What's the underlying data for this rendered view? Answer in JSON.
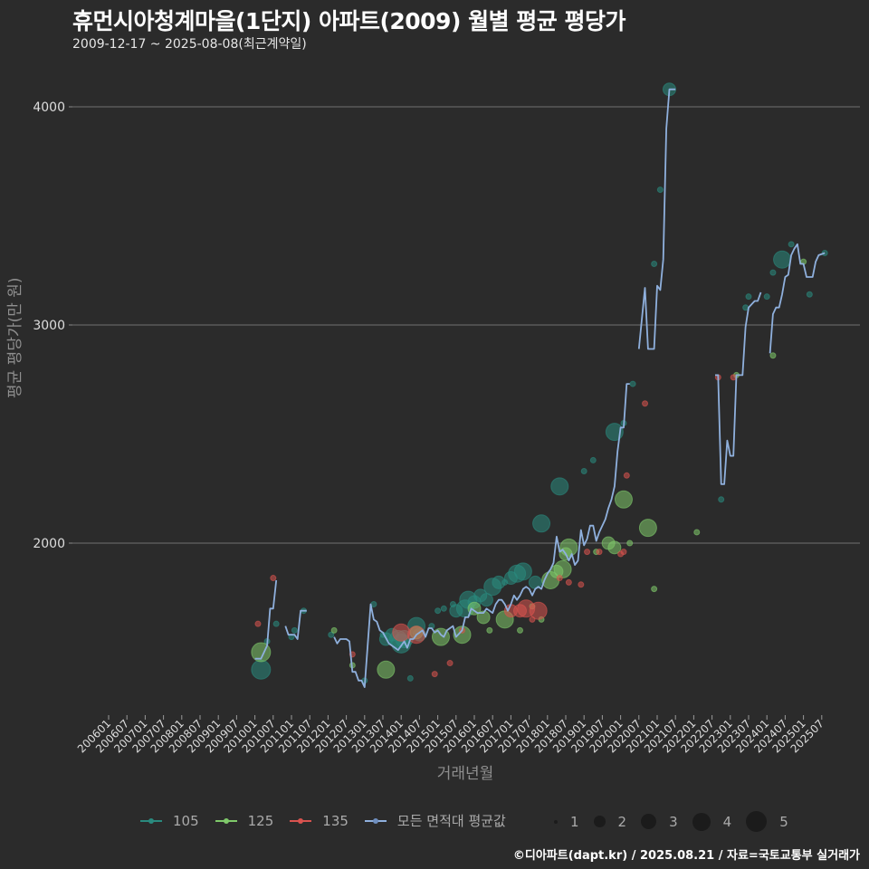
{
  "header": {
    "title": "휴먼시아청계마을(1단지) 아파트(2009) 월별 평균 평당가",
    "subtitle": "2009-12-17 ~ 2025-08-08(최근계약일)"
  },
  "axes": {
    "y_label": "평균 평당가(만 원)",
    "x_label": "거래년월",
    "y_ticks": [
      "2000",
      "3000",
      "4000"
    ],
    "x_ticks": [
      "200601",
      "200607",
      "200701",
      "200707",
      "200801",
      "200807",
      "200901",
      "200907",
      "201001",
      "201007",
      "201101",
      "201107",
      "201201",
      "201207",
      "201301",
      "201307",
      "201401",
      "201407",
      "201501",
      "201507",
      "201601",
      "201607",
      "201701",
      "201707",
      "201801",
      "201807",
      "201901",
      "201907",
      "202001",
      "202007",
      "202101",
      "202107",
      "202201",
      "202207",
      "202301",
      "202307",
      "202401",
      "202407",
      "202501",
      "202507"
    ]
  },
  "legend": {
    "series": [
      {
        "label": "105",
        "color": "#2a8a7e"
      },
      {
        "label": "125",
        "color": "#7fc96a"
      },
      {
        "label": "135",
        "color": "#d9534f"
      },
      {
        "label": "모든 면적대 평균값",
        "color": "#8fb0dd"
      }
    ],
    "sizes": [
      "1",
      "2",
      "3",
      "4",
      "5"
    ]
  },
  "footer": {
    "credit": "©디아파트(dapt.kr) / 2025.08.21 / 자료=국토교통부 실거래가"
  },
  "chart_data": {
    "type": "line",
    "title": "휴먼시아청계마을(1단지) 아파트(2009) 월별 평균 평당가",
    "subtitle": "2009-12-17 ~ 2025-08-08(최근계약일)",
    "xlabel": "거래년월",
    "ylabel": "평균 평당가(만 원)",
    "ylim": [
      1100,
      4150
    ],
    "grid": true,
    "legend_position": "bottom",
    "average_line": {
      "name": "모든 면적대 평균값",
      "segments": [
        [
          [
            "201001",
            1470
          ],
          [
            "201003",
            1470
          ],
          [
            "201005",
            1530
          ],
          [
            "201006",
            1700
          ],
          [
            "201007",
            1700
          ],
          [
            "201008",
            1830
          ]
        ],
        [
          [
            "201011",
            1620
          ],
          [
            "201012",
            1580
          ],
          [
            "201102",
            1580
          ],
          [
            "201103",
            1560
          ],
          [
            "201104",
            1690
          ],
          [
            "201106",
            1690
          ]
        ],
        [
          [
            "201203",
            1570
          ],
          [
            "201204",
            1540
          ],
          [
            "201205",
            1560
          ],
          [
            "201207",
            1560
          ],
          [
            "201208",
            1550
          ],
          [
            "201209",
            1410
          ],
          [
            "201210",
            1410
          ],
          [
            "201211",
            1370
          ],
          [
            "201212",
            1370
          ],
          [
            "201301",
            1340
          ],
          [
            "201303",
            1720
          ],
          [
            "201304",
            1650
          ],
          [
            "201305",
            1640
          ],
          [
            "201306",
            1600
          ],
          [
            "201307",
            1590
          ],
          [
            "201309",
            1540
          ],
          [
            "201310",
            1530
          ],
          [
            "201312",
            1510
          ],
          [
            "201401",
            1530
          ],
          [
            "201402",
            1550
          ],
          [
            "201403",
            1520
          ],
          [
            "201404",
            1560
          ],
          [
            "201405",
            1560
          ],
          [
            "201406",
            1580
          ],
          [
            "201407",
            1590
          ],
          [
            "201408",
            1600
          ],
          [
            "201409",
            1570
          ],
          [
            "201410",
            1610
          ],
          [
            "201411",
            1610
          ],
          [
            "201412",
            1590
          ],
          [
            "201501",
            1600
          ],
          [
            "201502",
            1580
          ],
          [
            "201503",
            1570
          ],
          [
            "201504",
            1600
          ],
          [
            "201506",
            1620
          ],
          [
            "201507",
            1570
          ],
          [
            "201509",
            1600
          ],
          [
            "201510",
            1660
          ],
          [
            "201511",
            1660
          ],
          [
            "201512",
            1700
          ],
          [
            "201601",
            1690
          ],
          [
            "201602",
            1680
          ],
          [
            "201604",
            1680
          ],
          [
            "201605",
            1700
          ],
          [
            "201606",
            1690
          ],
          [
            "201607",
            1680
          ],
          [
            "201608",
            1720
          ],
          [
            "201609",
            1740
          ],
          [
            "201610",
            1740
          ],
          [
            "201611",
            1720
          ],
          [
            "201612",
            1690
          ],
          [
            "201701",
            1720
          ],
          [
            "201702",
            1760
          ],
          [
            "201703",
            1740
          ],
          [
            "201704",
            1760
          ],
          [
            "201705",
            1790
          ],
          [
            "201706",
            1800
          ],
          [
            "201707",
            1790
          ],
          [
            "201708",
            1760
          ],
          [
            "201709",
            1790
          ],
          [
            "201710",
            1800
          ],
          [
            "201711",
            1790
          ],
          [
            "201712",
            1830
          ],
          [
            "201801",
            1860
          ],
          [
            "201802",
            1880
          ],
          [
            "201803",
            1910
          ],
          [
            "201804",
            2030
          ],
          [
            "201805",
            1960
          ],
          [
            "201806",
            1970
          ],
          [
            "201807",
            1950
          ],
          [
            "201808",
            1920
          ],
          [
            "201809",
            1950
          ],
          [
            "201810",
            1900
          ],
          [
            "201811",
            1920
          ],
          [
            "201812",
            2060
          ],
          [
            "201901",
            1990
          ],
          [
            "201902",
            2020
          ],
          [
            "201903",
            2080
          ],
          [
            "201904",
            2080
          ],
          [
            "201905",
            2010
          ],
          [
            "201906",
            2050
          ],
          [
            "201907",
            2080
          ],
          [
            "201908",
            2110
          ],
          [
            "201909",
            2160
          ],
          [
            "201910",
            2200
          ],
          [
            "201911",
            2260
          ],
          [
            "201912",
            2420
          ],
          [
            "202001",
            2530
          ],
          [
            "202002",
            2530
          ],
          [
            "202003",
            2730
          ],
          [
            "202004",
            2730
          ]
        ],
        [
          [
            "202007",
            2890
          ],
          [
            "202009",
            3170
          ],
          [
            "202010",
            2890
          ],
          [
            "202012",
            2890
          ],
          [
            "202101",
            3180
          ],
          [
            "202102",
            3160
          ],
          [
            "202103",
            3300
          ],
          [
            "202104",
            3900
          ],
          [
            "202105",
            4080
          ],
          [
            "202107",
            4080
          ]
        ],
        [
          [
            "202208",
            2770
          ],
          [
            "202209",
            2770
          ],
          [
            "202210",
            2270
          ],
          [
            "202211",
            2270
          ],
          [
            "202212",
            2470
          ],
          [
            "202301",
            2400
          ],
          [
            "202302",
            2400
          ],
          [
            "202303",
            2770
          ],
          [
            "202305",
            2770
          ],
          [
            "202306",
            2990
          ],
          [
            "202307",
            3080
          ],
          [
            "202309",
            3110
          ],
          [
            "202310",
            3110
          ],
          [
            "202311",
            3150
          ]
        ],
        [
          [
            "202402",
            2870
          ],
          [
            "202403",
            3050
          ],
          [
            "202404",
            3080
          ],
          [
            "202405",
            3080
          ],
          [
            "202406",
            3140
          ],
          [
            "202407",
            3220
          ],
          [
            "202408",
            3230
          ],
          [
            "202409",
            3320
          ],
          [
            "202410",
            3350
          ],
          [
            "202411",
            3370
          ],
          [
            "202412",
            3280
          ],
          [
            "202501",
            3280
          ],
          [
            "202502",
            3220
          ],
          [
            "202504",
            3220
          ],
          [
            "202505",
            3290
          ],
          [
            "202506",
            3320
          ],
          [
            "202508",
            3330
          ]
        ]
      ]
    },
    "scatter_series": [
      {
        "name": "105",
        "points": [
          [
            "201003",
            1420,
            4
          ],
          [
            "201005",
            1550,
            1
          ],
          [
            "201008",
            1630,
            1
          ],
          [
            "201102",
            1600,
            1
          ],
          [
            "201101",
            1570,
            1
          ],
          [
            "201105",
            1690,
            1
          ],
          [
            "201202",
            1580,
            1
          ],
          [
            "201301",
            1370,
            1
          ],
          [
            "201304",
            1720,
            1
          ],
          [
            "201307",
            1580,
            1
          ],
          [
            "201308",
            1560,
            2
          ],
          [
            "201310",
            1580,
            2
          ],
          [
            "201312",
            1560,
            3
          ],
          [
            "201401",
            1540,
            4
          ],
          [
            "201402",
            1560,
            3
          ],
          [
            "201404",
            1380,
            1
          ],
          [
            "201406",
            1620,
            3
          ],
          [
            "201407",
            1580,
            2
          ],
          [
            "201411",
            1620,
            1
          ],
          [
            "201501",
            1690,
            1
          ],
          [
            "201503",
            1700,
            1
          ],
          [
            "201506",
            1720,
            1
          ],
          [
            "201507",
            1690,
            2
          ],
          [
            "201510",
            1700,
            3
          ],
          [
            "201511",
            1740,
            3
          ],
          [
            "201601",
            1730,
            2
          ],
          [
            "201603",
            1760,
            2
          ],
          [
            "201605",
            1740,
            2
          ],
          [
            "201607",
            1800,
            3
          ],
          [
            "201609",
            1820,
            2
          ],
          [
            "201611",
            1820,
            1
          ],
          [
            "201701",
            1840,
            2
          ],
          [
            "201703",
            1860,
            3
          ],
          [
            "201705",
            1870,
            3
          ],
          [
            "201709",
            1820,
            2
          ],
          [
            "201711",
            2090,
            3
          ],
          [
            "201805",
            2260,
            3
          ],
          [
            "201901",
            2330,
            1
          ],
          [
            "201904",
            2380,
            1
          ],
          [
            "201911",
            2510,
            3
          ],
          [
            "202002",
            2550,
            1
          ],
          [
            "202005",
            2730,
            1
          ],
          [
            "202012",
            3280,
            1
          ],
          [
            "202102",
            3620,
            1
          ],
          [
            "202105",
            4080,
            2
          ],
          [
            "202210",
            2200,
            1
          ],
          [
            "202306",
            3080,
            1
          ],
          [
            "202307",
            3130,
            1
          ],
          [
            "202401",
            3130,
            1
          ],
          [
            "202403",
            3240,
            1
          ],
          [
            "202406",
            3300,
            3
          ],
          [
            "202409",
            3370,
            1
          ],
          [
            "202503",
            3140,
            1
          ],
          [
            "202508",
            3330,
            1
          ]
        ]
      },
      {
        "name": "125",
        "points": [
          [
            "201003",
            1500,
            4
          ],
          [
            "201203",
            1600,
            1
          ],
          [
            "201209",
            1440,
            1
          ],
          [
            "201308",
            1420,
            3
          ],
          [
            "201406",
            1590,
            2
          ],
          [
            "201502",
            1570,
            3
          ],
          [
            "201509",
            1580,
            3
          ],
          [
            "201601",
            1700,
            2
          ],
          [
            "201604",
            1660,
            2
          ],
          [
            "201606",
            1600,
            1
          ],
          [
            "201611",
            1650,
            3
          ],
          [
            "201704",
            1600,
            1
          ],
          [
            "201708",
            1710,
            1
          ],
          [
            "201711",
            1650,
            1
          ],
          [
            "201802",
            1830,
            3
          ],
          [
            "201804",
            1870,
            2
          ],
          [
            "201806",
            1880,
            3
          ],
          [
            "201807",
            1950,
            2
          ],
          [
            "201808",
            1980,
            3
          ],
          [
            "201905",
            1960,
            1
          ],
          [
            "201909",
            2000,
            2
          ],
          [
            "201911",
            1980,
            2
          ],
          [
            "202002",
            2200,
            3
          ],
          [
            "202004",
            2000,
            1
          ],
          [
            "202010",
            2070,
            3
          ],
          [
            "202012",
            1790,
            1
          ],
          [
            "202202",
            2050,
            1
          ],
          [
            "202303",
            2770,
            1
          ],
          [
            "202403",
            2860,
            1
          ],
          [
            "202501",
            3290,
            1
          ]
        ]
      },
      {
        "name": "135",
        "points": [
          [
            "201002",
            1630,
            1
          ],
          [
            "201007",
            1840,
            1
          ],
          [
            "201209",
            1490,
            1
          ],
          [
            "201401",
            1590,
            3
          ],
          [
            "201406",
            1580,
            3
          ],
          [
            "201412",
            1400,
            1
          ],
          [
            "201505",
            1450,
            1
          ],
          [
            "201509",
            1600,
            1
          ],
          [
            "201701",
            1690,
            2
          ],
          [
            "201704",
            1690,
            2
          ],
          [
            "201706",
            1700,
            3
          ],
          [
            "201708",
            1650,
            1
          ],
          [
            "201710",
            1690,
            3
          ],
          [
            "201805",
            1840,
            1
          ],
          [
            "201808",
            1820,
            1
          ],
          [
            "201812",
            1810,
            1
          ],
          [
            "201902",
            1960,
            1
          ],
          [
            "201906",
            1960,
            1
          ],
          [
            "202001",
            1950,
            1
          ],
          [
            "202002",
            1960,
            1
          ],
          [
            "202009",
            2640,
            1
          ],
          [
            "202003",
            2310,
            1
          ],
          [
            "202209",
            2760,
            1
          ],
          [
            "202302",
            2760,
            1
          ]
        ]
      }
    ]
  }
}
